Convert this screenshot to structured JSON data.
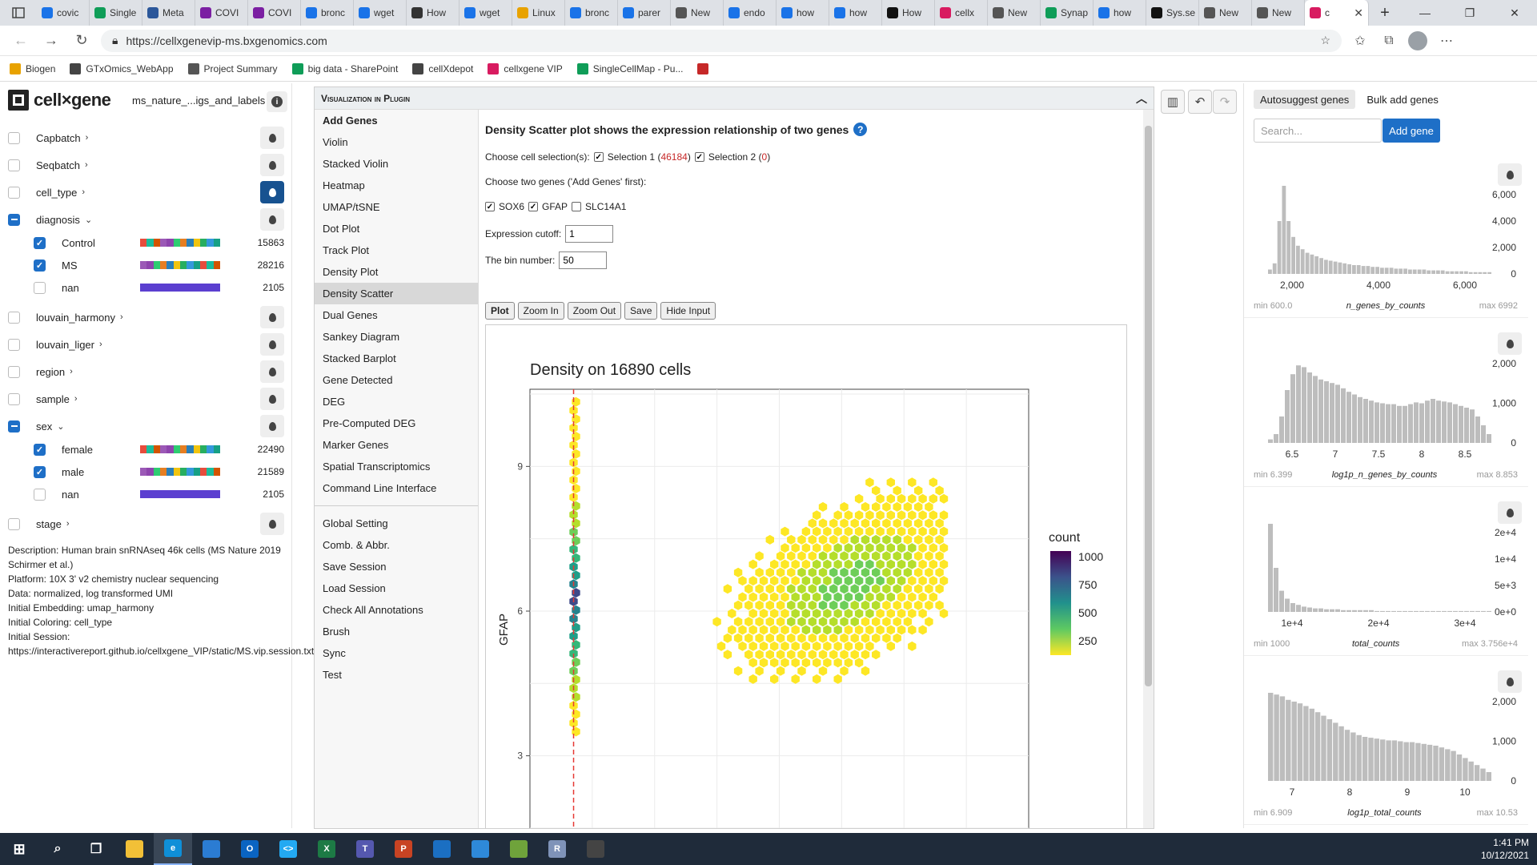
{
  "browser": {
    "tabs": [
      {
        "label": "covic",
        "color": "#1a73e8"
      },
      {
        "label": "Single",
        "color": "#0f9d58"
      },
      {
        "label": "Meta",
        "color": "#2b579a"
      },
      {
        "label": "COVI",
        "color": "#7b1fa2"
      },
      {
        "label": "COVI",
        "color": "#7b1fa2"
      },
      {
        "label": "bronc",
        "color": "#1a73e8"
      },
      {
        "label": "wget",
        "color": "#1a73e8"
      },
      {
        "label": "How",
        "color": "#333333"
      },
      {
        "label": "wget",
        "color": "#1a73e8"
      },
      {
        "label": "Linux",
        "color": "#e8a200"
      },
      {
        "label": "bronc",
        "color": "#1a73e8"
      },
      {
        "label": "parer",
        "color": "#1a73e8"
      },
      {
        "label": "New",
        "color": "#555555"
      },
      {
        "label": "endo",
        "color": "#1a73e8"
      },
      {
        "label": "how",
        "color": "#1a73e8"
      },
      {
        "label": "how",
        "color": "#1a73e8"
      },
      {
        "label": "How",
        "color": "#111111"
      },
      {
        "label": "cellx",
        "color": "#d81b60"
      },
      {
        "label": "New",
        "color": "#555555"
      },
      {
        "label": "Synap",
        "color": "#0f9d58"
      },
      {
        "label": "how",
        "color": "#1a73e8"
      },
      {
        "label": "Sys.se",
        "color": "#111111"
      },
      {
        "label": "New",
        "color": "#555555"
      },
      {
        "label": "New",
        "color": "#555555"
      }
    ],
    "active_tab": {
      "label": "c",
      "color": "#d81b60"
    },
    "url": "https://cellxgenevip-ms.bxgenomics.com",
    "bookmarks": [
      {
        "label": "Biogen",
        "color": "#e8a200"
      },
      {
        "label": "GTxOmics_WebApp",
        "color": "#444444"
      },
      {
        "label": "Project Summary",
        "color": "#555555"
      },
      {
        "label": "big data - SharePoint",
        "color": "#0f9d58"
      },
      {
        "label": "cellXdepot",
        "color": "#444444"
      },
      {
        "label": "cellxgene VIP",
        "color": "#d81b60"
      },
      {
        "label": "SingleCellMap - Pu...",
        "color": "#0f9d58"
      },
      {
        "label": "",
        "color": "#c62828"
      }
    ]
  },
  "app": {
    "logo": "cell×gene",
    "dataset": "ms_nature_...igs_and_labels",
    "categories": [
      {
        "label": "Capbatch",
        "state": "off",
        "expanded": false
      },
      {
        "label": "Seqbatch",
        "state": "off",
        "expanded": false
      },
      {
        "label": "cell_type",
        "state": "off",
        "expanded": false,
        "active": true
      },
      {
        "label": "diagnosis",
        "state": "partial",
        "expanded": true,
        "values": [
          {
            "label": "Control",
            "count": "15863",
            "checked": true
          },
          {
            "label": "MS",
            "count": "28216",
            "checked": true
          },
          {
            "label": "nan",
            "count": "2105",
            "checked": false
          }
        ]
      },
      {
        "label": "louvain_harmony",
        "state": "off",
        "expanded": false
      },
      {
        "label": "louvain_liger",
        "state": "off",
        "expanded": false
      },
      {
        "label": "region",
        "state": "off",
        "expanded": false
      },
      {
        "label": "sample",
        "state": "off",
        "expanded": false
      },
      {
        "label": "sex",
        "state": "partial",
        "expanded": true,
        "values": [
          {
            "label": "female",
            "count": "22490",
            "checked": true
          },
          {
            "label": "male",
            "count": "21589",
            "checked": true
          },
          {
            "label": "nan",
            "count": "2105",
            "checked": false
          }
        ]
      },
      {
        "label": "stage",
        "state": "off",
        "expanded": false
      }
    ],
    "description": [
      "Description: Human brain snRNAseq 46k cells (MS Nature 2019 Schirmer et al.)",
      "Platform: 10X 3' v2 chemistry nuclear sequencing",
      "Data: normalized, log transformed UMI",
      "Initial Embedding: umap_harmony",
      "Initial Coloring: cell_type",
      "Initial Session:",
      "https://interactivereport.github.io/cellxgene_VIP/static/MS.vip.session.txt"
    ]
  },
  "plugin": {
    "title": "Visualization in Plugin",
    "menu_top": [
      "Add Genes",
      "Violin",
      "Stacked Violin",
      "Heatmap",
      "UMAP/tSNE",
      "Dot Plot",
      "Track Plot",
      "Density Plot",
      "Density Scatter",
      "Dual Genes",
      "Sankey Diagram",
      "Stacked Barplot",
      "Gene Detected",
      "DEG",
      "Pre-Computed DEG",
      "Marker Genes",
      "Spatial Transcriptomics",
      "Command Line Interface"
    ],
    "menu_bottom": [
      "Global Setting",
      "Comb. & Abbr.",
      "Save Session",
      "Load Session",
      "Check All Annotations",
      "Brush",
      "Sync",
      "Test"
    ],
    "selected": "Density Scatter",
    "heading": "Density Scatter plot shows the expression relationship of two genes",
    "choose_sel": "Choose cell selection(s):",
    "sel1_label": "Selection 1 (",
    "sel1_count": "46184",
    "sel2_label": "Selection 2 (",
    "sel2_count": "0",
    "close_paren": ")",
    "choose_genes": "Choose two genes ('Add Genes' first):",
    "genes": [
      {
        "label": "SOX6",
        "checked": true
      },
      {
        "label": "GFAP",
        "checked": true
      },
      {
        "label": "SLC14A1",
        "checked": false
      }
    ],
    "cutoff_label": "Expression cutoff:",
    "cutoff_value": "1",
    "bin_label": "The bin number:",
    "bin_value": "50",
    "buttons": [
      "Plot",
      "Zoom In",
      "Zoom Out",
      "Save",
      "Hide Input"
    ]
  },
  "chart_data": {
    "type": "scatter",
    "subtype": "hexbin density",
    "title": "Density on 16890 cells",
    "ylabel": "GFAP",
    "xlabel": "",
    "yticks": [
      3,
      6,
      9
    ],
    "ylim": [
      1.3,
      10.6
    ],
    "xlim": [
      0,
      4
    ],
    "cutoff_x": 0.35,
    "legend": {
      "title": "count",
      "ticks": [
        1000,
        750,
        500,
        250
      ],
      "colors": [
        "#440154",
        "#3b528b",
        "#21918c",
        "#5ec962",
        "#fde725"
      ]
    },
    "column_at_cutoff": {
      "x": 0.35,
      "y_range": [
        3.5,
        10.5
      ]
    },
    "main_cluster": {
      "x_range": [
        1.5,
        3.3
      ],
      "y_range": [
        3.4,
        8.9
      ]
    }
  },
  "right_panel": {
    "tabs": [
      "Autosuggest genes",
      "Bulk add genes"
    ],
    "search_placeholder": "Search...",
    "add_button": "Add gene",
    "histograms": [
      {
        "name": "n_genes_by_counts",
        "min": "min 600.0",
        "max": "max 6992",
        "yticks": [
          "6,000",
          "4,000",
          "2,000",
          "0"
        ],
        "xticks": [
          "2,000",
          "4,000",
          "6,000"
        ],
        "bars": [
          5,
          12,
          60,
          100,
          60,
          42,
          32,
          28,
          24,
          22,
          20,
          18,
          16,
          15,
          14,
          13,
          12,
          11,
          10,
          10,
          9,
          9,
          8,
          8,
          7,
          7,
          7,
          6,
          6,
          6,
          5,
          5,
          5,
          5,
          4,
          4,
          4,
          4,
          3,
          3,
          3,
          3,
          3,
          2,
          2,
          2,
          2,
          2
        ]
      },
      {
        "name": "log1p_n_genes_by_counts",
        "min": "min 6.399",
        "max": "max 8.853",
        "yticks": [
          "2,000",
          "1,000",
          "0"
        ],
        "xticks": [
          "6.5",
          "7",
          "7.5",
          "8",
          "8.5"
        ],
        "bars": [
          4,
          10,
          30,
          60,
          78,
          88,
          86,
          80,
          76,
          72,
          70,
          68,
          66,
          62,
          58,
          55,
          52,
          50,
          48,
          46,
          45,
          44,
          44,
          42,
          42,
          44,
          46,
          45,
          48,
          50,
          48,
          47,
          46,
          44,
          42,
          40,
          38,
          30,
          20,
          10
        ]
      },
      {
        "name": "total_counts",
        "min": "min 1000",
        "max": "max 3.756e+4",
        "yticks": [
          "2e+4",
          "1e+4",
          "5e+3",
          "0e+0"
        ],
        "xticks": [
          "1e+4",
          "2e+4",
          "3e+4"
        ],
        "bars": [
          100,
          50,
          24,
          15,
          10,
          8,
          6,
          5,
          4,
          4,
          3,
          3,
          3,
          2,
          2,
          2,
          2,
          2,
          2,
          1,
          1,
          1,
          1,
          1,
          1,
          1,
          1,
          1,
          1,
          1,
          1,
          1,
          1,
          1,
          1,
          1,
          1,
          1,
          1,
          1
        ]
      },
      {
        "name": "log1p_total_counts",
        "min": "min 6.909",
        "max": "max 10.53",
        "yticks": [
          "2,000",
          "1,000",
          "0"
        ],
        "xticks": [
          "7",
          "8",
          "9",
          "10"
        ],
        "bars": [
          100,
          98,
          96,
          92,
          90,
          88,
          85,
          82,
          78,
          74,
          70,
          66,
          62,
          58,
          55,
          52,
          50,
          49,
          48,
          47,
          46,
          46,
          45,
          44,
          44,
          43,
          42,
          41,
          40,
          38,
          36,
          34,
          30,
          26,
          22,
          18,
          14,
          10
        ]
      }
    ]
  },
  "taskbar": {
    "time": "1:41 PM",
    "date": "10/12/2021",
    "apps": [
      {
        "name": "start",
        "color": "#ffffff",
        "glyph": "⊞"
      },
      {
        "name": "search",
        "color": "#1f2b3a",
        "glyph": "⌕"
      },
      {
        "name": "task-view",
        "color": "#1f2b3a",
        "glyph": "❐"
      },
      {
        "name": "file-explorer",
        "color": "#f2c037",
        "glyph": ""
      },
      {
        "name": "edge",
        "color": "#0f8fd8",
        "glyph": "e"
      },
      {
        "name": "store",
        "color": "#2b7cd3",
        "glyph": ""
      },
      {
        "name": "outlook",
        "color": "#0a64c2",
        "glyph": "O"
      },
      {
        "name": "vscode",
        "color": "#23a9f2",
        "glyph": "<>"
      },
      {
        "name": "excel",
        "color": "#1d7a45",
        "glyph": "X"
      },
      {
        "name": "teams",
        "color": "#5558af",
        "glyph": "T"
      },
      {
        "name": "powerpoint",
        "color": "#c84323",
        "glyph": "P"
      },
      {
        "name": "photos",
        "color": "#1b6fc2",
        "glyph": ""
      },
      {
        "name": "remote",
        "color": "#2e89d9",
        "glyph": ""
      },
      {
        "name": "git",
        "color": "#6fa33b",
        "glyph": ""
      },
      {
        "name": "r",
        "color": "#7f93b8",
        "glyph": "R"
      },
      {
        "name": "inkscape",
        "color": "#444444",
        "glyph": ""
      }
    ]
  }
}
